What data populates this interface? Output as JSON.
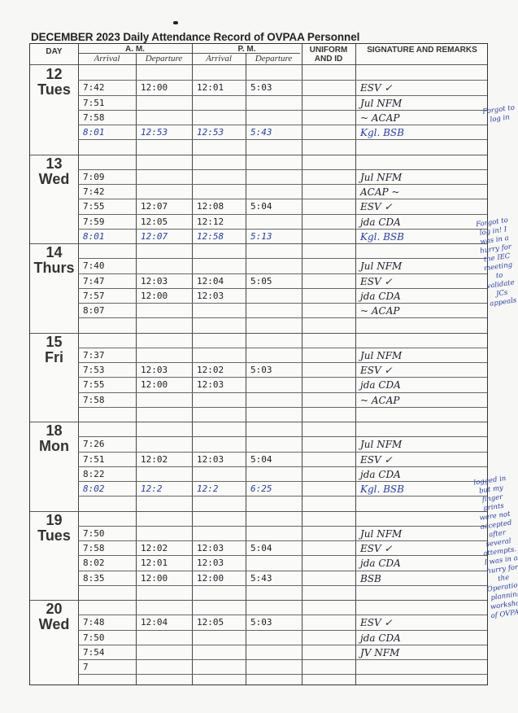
{
  "title": "DECEMBER 2023  Daily Attendance Record of OVPAA Personnel",
  "headers": {
    "day": "DAY",
    "am": "A. M.",
    "pm": "P. M.",
    "am_arrival": "Arrival",
    "am_departure": "Departure",
    "pm_arrival": "Arrival",
    "pm_departure": "Departure",
    "uniform": "UNIFORM AND ID",
    "signature": "SIGNATURE AND REMARKS"
  },
  "ink_colors": {
    "black": "#1d1d22",
    "blue": "#2a3c9a"
  },
  "days": [
    {
      "num": "12",
      "name": "Tues",
      "rows": [
        {
          "times": [
            "",
            "",
            "",
            ""
          ],
          "ink": "black",
          "sig": ""
        },
        {
          "times": [
            "7:42",
            "12:00",
            "12:01",
            "5:03"
          ],
          "ink": "black",
          "sig": "ESV  ✓"
        },
        {
          "times": [
            "7:51",
            "",
            "",
            ""
          ],
          "ink": "black",
          "sig": "Jul   NFM"
        },
        {
          "times": [
            "7:58",
            "",
            "",
            ""
          ],
          "ink": "black",
          "sig": "~   ACAP"
        },
        {
          "times": [
            "8:01",
            "12:53",
            "12:53",
            "5:43"
          ],
          "ink": "blue",
          "sig": "Kgl.  BSB"
        },
        {
          "times": [
            "",
            "",
            "",
            ""
          ],
          "ink": "black",
          "sig": ""
        }
      ]
    },
    {
      "num": "13",
      "name": "Wed",
      "rows": [
        {
          "times": [
            "",
            "",
            "",
            ""
          ],
          "ink": "black",
          "sig": ""
        },
        {
          "times": [
            "7:09",
            "",
            "",
            ""
          ],
          "ink": "black",
          "sig": "Jul   NFM"
        },
        {
          "times": [
            "7:42",
            "",
            "",
            ""
          ],
          "ink": "black",
          "sig": "ACAP  ~"
        },
        {
          "times": [
            "7:55",
            "12:07",
            "12:08",
            "5:04"
          ],
          "ink": "black",
          "sig": "ESV   ✓"
        },
        {
          "times": [
            "7:59",
            "12:05",
            "12:12",
            ""
          ],
          "ink": "black",
          "sig": "jda   CDA"
        },
        {
          "times": [
            "8:01",
            "12:07",
            "12:58",
            "5:13"
          ],
          "ink": "blue",
          "sig": "Kgl.  BSB"
        }
      ]
    },
    {
      "num": "14",
      "name": "Thurs",
      "rows": [
        {
          "times": [
            "",
            "",
            "",
            ""
          ],
          "ink": "black",
          "sig": ""
        },
        {
          "times": [
            "7:40",
            "",
            "",
            ""
          ],
          "ink": "black",
          "sig": "Jul   NFM"
        },
        {
          "times": [
            "7:47",
            "12:03",
            "12:04",
            "5:05"
          ],
          "ink": "black",
          "sig": "ESV   ✓"
        },
        {
          "times": [
            "7:57",
            "12:00",
            "12:03",
            ""
          ],
          "ink": "black",
          "sig": "jda   CDA"
        },
        {
          "times": [
            "8:07",
            "",
            "",
            ""
          ],
          "ink": "black",
          "sig": "~   ACAP"
        },
        {
          "times": [
            "",
            "",
            "",
            ""
          ],
          "ink": "black",
          "sig": ""
        }
      ]
    },
    {
      "num": "15",
      "name": "Fri",
      "rows": [
        {
          "times": [
            "",
            "",
            "",
            ""
          ],
          "ink": "black",
          "sig": ""
        },
        {
          "times": [
            "7:37",
            "",
            "",
            ""
          ],
          "ink": "black",
          "sig": "Jul   NFM"
        },
        {
          "times": [
            "7:53",
            "12:03",
            "12:02",
            "5:03"
          ],
          "ink": "black",
          "sig": "ESV   ✓"
        },
        {
          "times": [
            "7:55",
            "12:00",
            "12:03",
            ""
          ],
          "ink": "black",
          "sig": "jda   CDA"
        },
        {
          "times": [
            "7:58",
            "",
            "",
            ""
          ],
          "ink": "black",
          "sig": "~   ACAP"
        },
        {
          "times": [
            "",
            "",
            "",
            ""
          ],
          "ink": "black",
          "sig": ""
        }
      ]
    },
    {
      "num": "18",
      "name": "Mon",
      "rows": [
        {
          "times": [
            "",
            "",
            "",
            ""
          ],
          "ink": "black",
          "sig": ""
        },
        {
          "times": [
            "7:26",
            "",
            "",
            ""
          ],
          "ink": "black",
          "sig": "Jul   NFM"
        },
        {
          "times": [
            "7:51",
            "12:02",
            "12:03",
            "5:04"
          ],
          "ink": "black",
          "sig": "ESV   ✓"
        },
        {
          "times": [
            "8:22",
            "",
            "",
            ""
          ],
          "ink": "black",
          "sig": "jda   CDA"
        },
        {
          "times": [
            "8:02",
            "12:2",
            "12:2",
            "6:25"
          ],
          "ink": "blue",
          "sig": "Kgl.  BSB"
        },
        {
          "times": [
            "",
            "",
            "",
            ""
          ],
          "ink": "black",
          "sig": ""
        }
      ]
    },
    {
      "num": "19",
      "name": "Tues",
      "rows": [
        {
          "times": [
            "",
            "",
            "",
            ""
          ],
          "ink": "black",
          "sig": ""
        },
        {
          "times": [
            "7:50",
            "",
            "",
            ""
          ],
          "ink": "black",
          "sig": "Jul   NFM"
        },
        {
          "times": [
            "7:58",
            "12:02",
            "12:03",
            "5:04"
          ],
          "ink": "black",
          "sig": "ESV   ✓"
        },
        {
          "times": [
            "8:02",
            "12:01",
            "12:03",
            ""
          ],
          "ink": "black",
          "sig": "jda   CDA"
        },
        {
          "times": [
            "8:35",
            "12:00",
            "12:00",
            "5:43"
          ],
          "ink": "black",
          "sig": "      BSB"
        },
        {
          "times": [
            "",
            "",
            "",
            ""
          ],
          "ink": "black",
          "sig": ""
        }
      ]
    },
    {
      "num": "20",
      "name": "Wed",
      "rows": [
        {
          "times": [
            "",
            "",
            "",
            ""
          ],
          "ink": "black",
          "sig": ""
        },
        {
          "times": [
            "7:48",
            "12:04",
            "12:05",
            "5:03"
          ],
          "ink": "black",
          "sig": "ESV  ✓"
        },
        {
          "times": [
            "7:50",
            "",
            "",
            ""
          ],
          "ink": "black",
          "sig": "jda   CDA"
        },
        {
          "times": [
            "7:54",
            "",
            "",
            ""
          ],
          "ink": "black",
          "sig": "JV   NFM"
        },
        {
          "times": [
            "7",
            "",
            "",
            ""
          ],
          "ink": "black",
          "sig": ""
        },
        {
          "times": [
            "",
            "",
            "",
            ""
          ],
          "ink": "black",
          "sig": ""
        }
      ]
    }
  ],
  "notes": [
    "Forgot to log in",
    "Forgot to log in! I was in a hurry for the IEC meeting to validate JCs appeals",
    "logged in but my finger prints were not accepted after several attempts. I was in a hurry for the Operational planning workshop of OVPAA."
  ]
}
